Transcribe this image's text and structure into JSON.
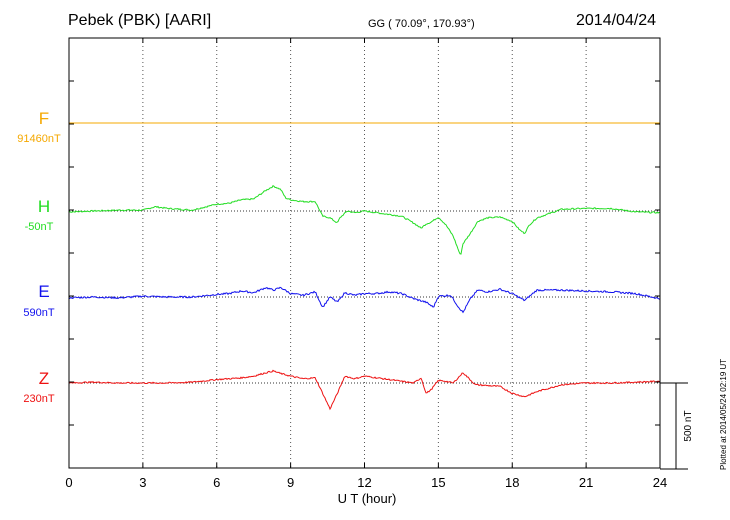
{
  "header": {
    "station": "Pebek (PBK)  [AARI]",
    "coords": "GG ( 70.09°, 170.93°)",
    "date": "2014/04/24",
    "plotted": "Plotted at 2014/05/24 02:19 UT"
  },
  "chart_data": {
    "type": "line",
    "xlabel": "U T (hour)",
    "xlim": [
      0,
      24
    ],
    "xticks": [
      "0",
      "3",
      "6",
      "9",
      "12",
      "15",
      "18",
      "21",
      "24"
    ],
    "grid": true,
    "scale_bar": "500 nT",
    "series": [
      {
        "name": "F",
        "baseline": "91460nT",
        "color": "#f5a800",
        "x": [
          0,
          24
        ],
        "y": [
          0,
          0
        ]
      },
      {
        "name": "H",
        "baseline": "-50nT",
        "color": "#22dd22",
        "x": [
          0,
          1,
          2,
          3,
          3.5,
          4,
          5,
          6,
          6.5,
          7,
          7.5,
          8,
          8.3,
          8.6,
          8.8,
          9,
          9.5,
          10,
          10.3,
          10.6,
          10.9,
          11,
          11.3,
          11.6,
          12,
          12.5,
          13,
          13.5,
          14,
          14.3,
          14.5,
          14.7,
          15,
          15.3,
          15.6,
          15.9,
          16,
          16.3,
          16.6,
          17,
          17.5,
          18,
          18.3,
          18.5,
          18.7,
          19,
          20,
          21,
          22,
          23,
          24
        ],
        "y": [
          -5,
          0,
          5,
          5,
          25,
          15,
          5,
          40,
          45,
          65,
          70,
          120,
          145,
          125,
          75,
          65,
          55,
          55,
          -30,
          -40,
          -70,
          -40,
          0,
          -10,
          0,
          -10,
          -20,
          -30,
          -70,
          -100,
          -75,
          -65,
          -35,
          -80,
          -145,
          -260,
          -190,
          -130,
          -60,
          -40,
          -35,
          -60,
          -110,
          -130,
          -80,
          -40,
          10,
          15,
          15,
          -5,
          -10
        ]
      },
      {
        "name": "E",
        "baseline": "590nT",
        "color": "#1010ee",
        "x": [
          0,
          1,
          2,
          3,
          4,
          5,
          6,
          6.5,
          7,
          7.5,
          8,
          8.3,
          8.6,
          9,
          9.5,
          10,
          10.3,
          10.6,
          10.9,
          11.2,
          11.6,
          12,
          12.5,
          13,
          13.5,
          14,
          14.5,
          14.8,
          15,
          15.5,
          15.8,
          16,
          16.3,
          16.6,
          17,
          17.5,
          18,
          18.5,
          19,
          20,
          21,
          22,
          23,
          24
        ],
        "y": [
          -5,
          0,
          -5,
          5,
          0,
          0,
          15,
          20,
          35,
          25,
          55,
          40,
          55,
          20,
          10,
          30,
          -60,
          0,
          -30,
          25,
          10,
          20,
          20,
          30,
          20,
          -10,
          -30,
          -60,
          5,
          10,
          -55,
          -90,
          -10,
          40,
          30,
          45,
          20,
          -20,
          40,
          40,
          35,
          30,
          20,
          -10
        ]
      },
      {
        "name": "Z",
        "baseline": "230nT",
        "color": "#ee1111",
        "x": [
          0,
          1,
          2,
          3,
          4,
          5,
          6,
          7,
          7.5,
          8,
          8.3,
          8.6,
          9,
          9.5,
          10,
          10.3,
          10.6,
          10.9,
          11.2,
          11.6,
          12,
          12.5,
          13,
          13.5,
          14,
          14.3,
          14.5,
          14.7,
          15,
          15.3,
          15.6,
          16,
          16.5,
          17,
          17.5,
          18,
          18.5,
          19,
          20,
          21,
          22,
          23,
          24
        ],
        "y": [
          0,
          5,
          0,
          0,
          0,
          5,
          20,
          30,
          40,
          60,
          70,
          55,
          40,
          25,
          30,
          -60,
          -150,
          -60,
          40,
          25,
          40,
          30,
          20,
          10,
          0,
          30,
          -60,
          -40,
          15,
          10,
          0,
          60,
          -10,
          -15,
          -20,
          -60,
          -80,
          -50,
          -10,
          0,
          0,
          5,
          10
        ]
      }
    ]
  }
}
